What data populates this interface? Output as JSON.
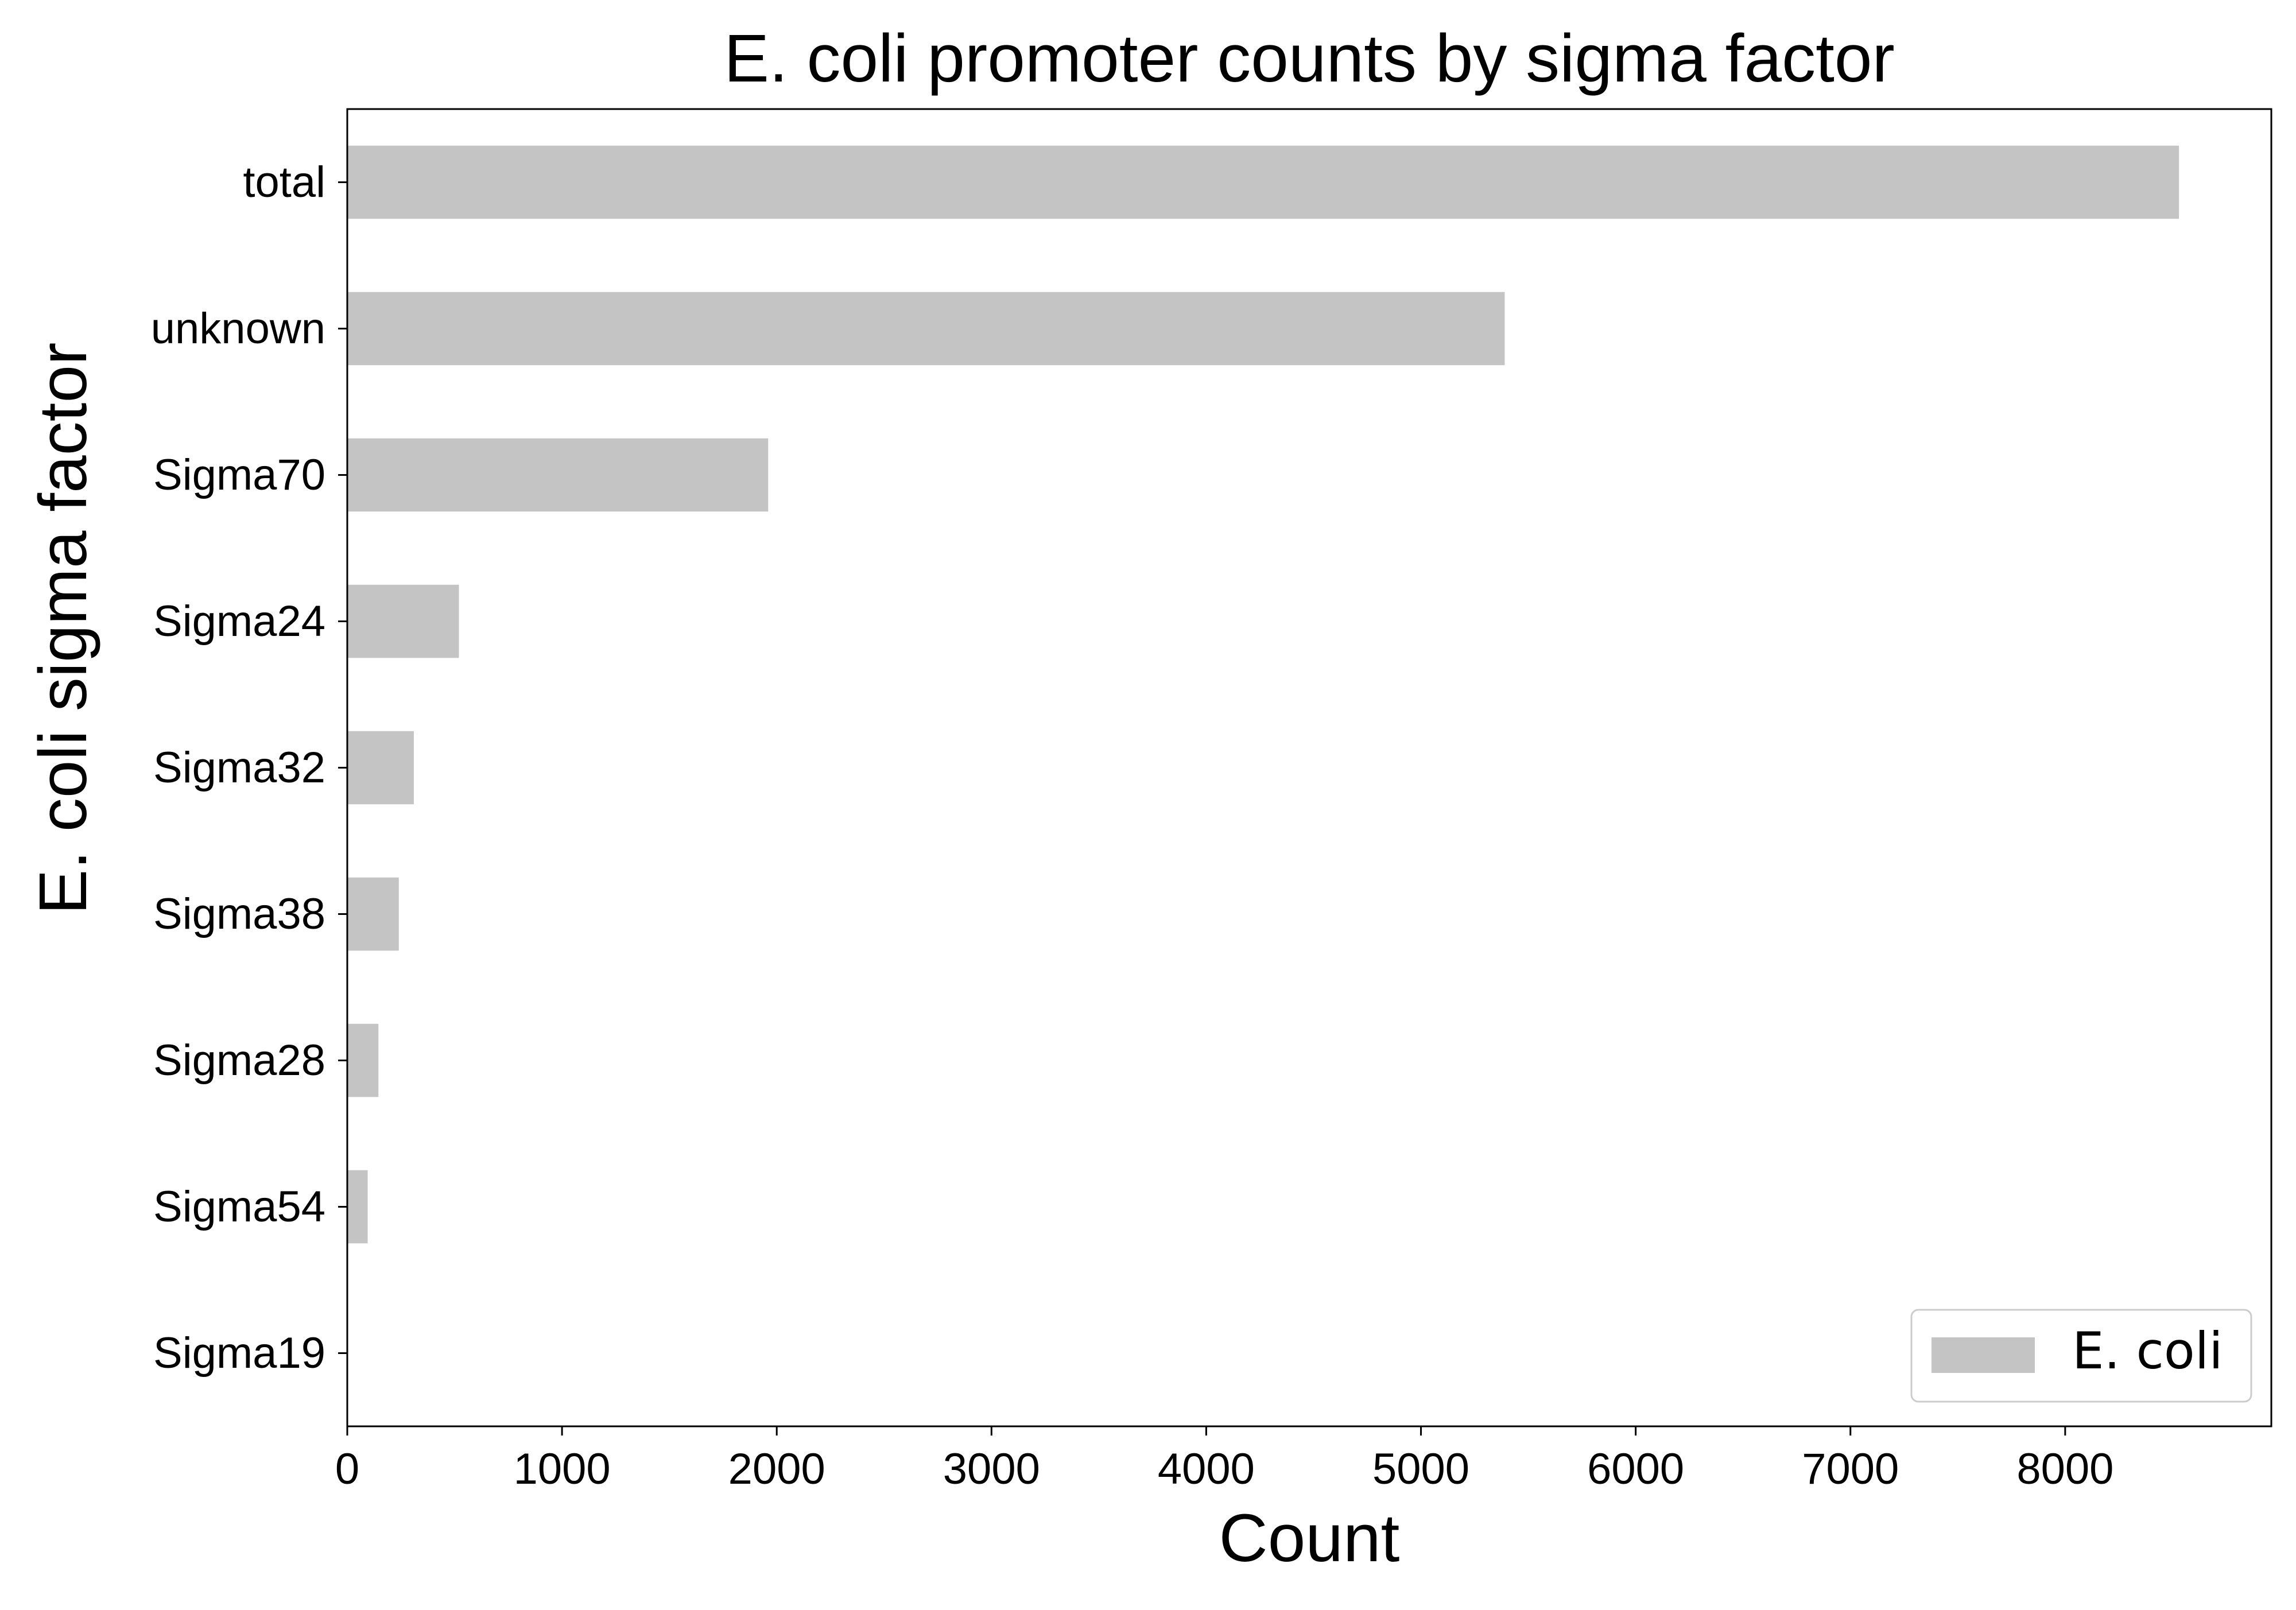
{
  "chart_data": {
    "type": "bar",
    "orientation": "horizontal",
    "title": "E. coli promoter counts by sigma factor",
    "xlabel": "Count",
    "ylabel": "E. coli sigma factor",
    "categories": [
      "total",
      "unknown",
      "Sigma70",
      "Sigma24",
      "Sigma32",
      "Sigma38",
      "Sigma28",
      "Sigma54",
      "Sigma19"
    ],
    "series": [
      {
        "name": "E. coli",
        "values": [
          8530,
          5390,
          1960,
          520,
          310,
          240,
          145,
          95,
          0
        ]
      }
    ],
    "xlim": [
      0,
      8960
    ],
    "xticks": [
      0,
      1000,
      2000,
      3000,
      4000,
      5000,
      6000,
      7000,
      8000
    ],
    "grid": false,
    "legend_position": "lower-right",
    "bar_color": "#c4c4c4"
  }
}
